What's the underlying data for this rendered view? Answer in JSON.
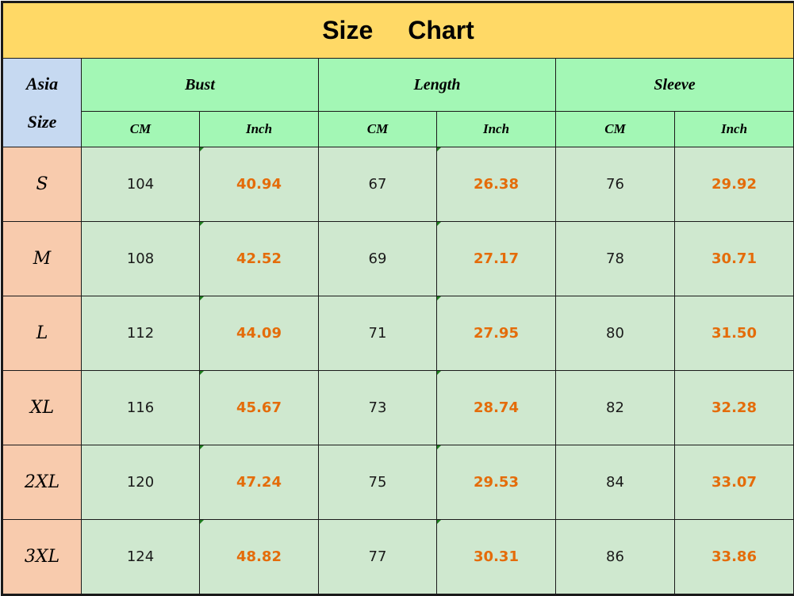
{
  "title": {
    "word1": "Size",
    "word2": "Chart"
  },
  "header": {
    "size_label_line1": "Asia",
    "size_label_line2": "Size",
    "groups": [
      "Bust",
      "Length",
      "Sleeve"
    ],
    "units": [
      "CM",
      "Inch",
      "CM",
      "Inch",
      "CM",
      "Inch"
    ]
  },
  "rows": [
    {
      "size": "S",
      "bust_cm": "104",
      "bust_in": "40.94",
      "length_cm": "67",
      "length_in": "26.38",
      "sleeve_cm": "76",
      "sleeve_in": "29.92"
    },
    {
      "size": "M",
      "bust_cm": "108",
      "bust_in": "42.52",
      "length_cm": "69",
      "length_in": "27.17",
      "sleeve_cm": "78",
      "sleeve_in": "30.71"
    },
    {
      "size": "L",
      "bust_cm": "112",
      "bust_in": "44.09",
      "length_cm": "71",
      "length_in": "27.95",
      "sleeve_cm": "80",
      "sleeve_in": "31.50"
    },
    {
      "size": "XL",
      "bust_cm": "116",
      "bust_in": "45.67",
      "length_cm": "73",
      "length_in": "28.74",
      "sleeve_cm": "82",
      "sleeve_in": "32.28"
    },
    {
      "size": "2XL",
      "bust_cm": "120",
      "bust_in": "47.24",
      "length_cm": "75",
      "length_in": "29.53",
      "sleeve_cm": "84",
      "sleeve_in": "33.07"
    },
    {
      "size": "3XL",
      "bust_cm": "124",
      "bust_in": "48.82",
      "length_cm": "77",
      "length_in": "30.31",
      "sleeve_cm": "86",
      "sleeve_in": "33.86"
    }
  ],
  "colors": {
    "title_bg": "#ffd966",
    "asia_bg": "#c6d9f1",
    "header_bg": "#a3f7b5",
    "size_bg": "#f8cbad",
    "data_bg": "#cfe8cf",
    "inch_text": "#e46c0a",
    "cell_marker": "#1e7e1e"
  }
}
